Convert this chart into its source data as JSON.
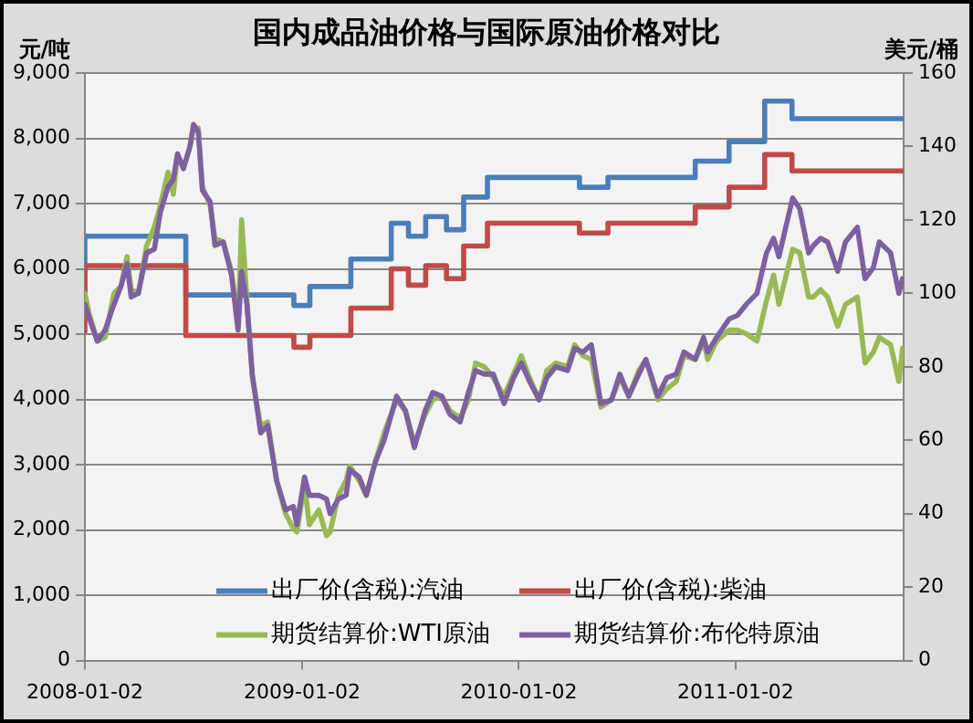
{
  "chart_data": {
    "type": "line",
    "title": "国内成品油价格与国际原油价格对比",
    "ylabel": "元/吨",
    "y2label": "美元/桶",
    "x": [
      "2008-01-02",
      "2008-01-10",
      "2008-01-23",
      "2008-02-05",
      "2008-02-20",
      "2008-03-03",
      "2008-03-13",
      "2008-03-20",
      "2008-04-01",
      "2008-04-15",
      "2008-04-28",
      "2008-05-08",
      "2008-05-21",
      "2008-05-30",
      "2008-06-06",
      "2008-06-16",
      "2008-06-27",
      "2008-07-03",
      "2008-07-11",
      "2008-07-18",
      "2008-07-31",
      "2008-08-08",
      "2008-08-22",
      "2008-09-05",
      "2008-09-16",
      "2008-09-22",
      "2008-10-01",
      "2008-10-10",
      "2008-10-24",
      "2008-11-05",
      "2008-11-20",
      "2008-12-05",
      "2008-12-18",
      "2008-12-24",
      "2009-01-06",
      "2009-01-14",
      "2009-01-30",
      "2009-02-12",
      "2009-02-18",
      "2009-03-04",
      "2009-03-17",
      "2009-03-23",
      "2009-04-08",
      "2009-04-20",
      "2009-05-05",
      "2009-05-20",
      "2009-06-10",
      "2009-06-25",
      "2009-07-10",
      "2009-07-28",
      "2009-08-10",
      "2009-08-25",
      "2009-09-08",
      "2009-09-25",
      "2009-10-09",
      "2009-10-21",
      "2009-11-05",
      "2009-11-20",
      "2009-12-08",
      "2009-12-24",
      "2010-01-06",
      "2010-01-20",
      "2010-02-05",
      "2010-02-18",
      "2010-03-05",
      "2010-03-25",
      "2010-04-06",
      "2010-04-20",
      "2010-05-04",
      "2010-05-20",
      "2010-06-07",
      "2010-06-21",
      "2010-07-06",
      "2010-07-23",
      "2010-08-04",
      "2010-08-24",
      "2010-09-08",
      "2010-09-24",
      "2010-10-07",
      "2010-10-26",
      "2010-11-09",
      "2010-11-16",
      "2010-12-01",
      "2010-12-22",
      "2011-01-05",
      "2011-01-20",
      "2011-02-07",
      "2011-02-23",
      "2011-03-07",
      "2011-03-16",
      "2011-04-08",
      "2011-04-20",
      "2011-05-05",
      "2011-05-13",
      "2011-05-25",
      "2011-06-06",
      "2011-06-23",
      "2011-07-06",
      "2011-07-26",
      "2011-08-08",
      "2011-08-22",
      "2011-09-01",
      "2011-09-20",
      "2011-10-04",
      "2011-10-10"
    ],
    "series": [
      {
        "name": "出厂价(含税):汽油",
        "type": "step",
        "color": "#4a7ebb",
        "x": [
          "2008-01-02",
          "2008-06-20",
          "2008-12-19",
          "2009-01-15",
          "2009-03-25",
          "2009-06-01",
          "2009-06-30",
          "2009-07-29",
          "2009-09-02",
          "2009-10-01",
          "2009-11-10",
          "2010-04-14",
          "2010-06-01",
          "2010-10-26",
          "2010-12-22",
          "2011-02-20",
          "2011-04-07",
          "2011-10-09",
          "2011-10-12"
        ],
        "values": [
          5500,
          6500,
          5600,
          5440,
          5730,
          6150,
          6700,
          6500,
          6800,
          6600,
          7100,
          7400,
          7250,
          7400,
          7650,
          7950,
          8570,
          8300,
          8300
        ]
      },
      {
        "name": "出厂价(含税):柴油",
        "type": "step",
        "color": "#be4b48",
        "x": [
          "2008-01-02",
          "2008-06-20",
          "2008-12-19",
          "2009-01-15",
          "2009-03-25",
          "2009-06-01",
          "2009-06-30",
          "2009-07-29",
          "2009-09-02",
          "2009-10-01",
          "2009-11-10",
          "2010-04-14",
          "2010-06-01",
          "2010-10-26",
          "2010-12-22",
          "2011-02-20",
          "2011-04-07",
          "2011-10-09",
          "2011-10-12"
        ],
        "values": [
          5040,
          6050,
          4980,
          4800,
          4980,
          5400,
          6000,
          5750,
          6050,
          5850,
          6350,
          6700,
          6550,
          6700,
          6950,
          7250,
          7750,
          7500,
          7500
        ]
      },
      {
        "name": "期货结算价:WTI原油",
        "axis": "y2",
        "color": "#98b954",
        "values": [
          100,
          94,
          87,
          88,
          100,
          102,
          110,
          101,
          100,
          113,
          118,
          124,
          133,
          127,
          138,
          134,
          140,
          145,
          145,
          129,
          124,
          115,
          114,
          106,
          91,
          120,
          98,
          77,
          64,
          65,
          49,
          40,
          36,
          35,
          48,
          37,
          41,
          34,
          35,
          45,
          49,
          53,
          49,
          45,
          54,
          62,
          71,
          68,
          59,
          67,
          71,
          72,
          68,
          66,
          71,
          81,
          80,
          77,
          72,
          78,
          83,
          77,
          71,
          79,
          81,
          80,
          86,
          83,
          82,
          69,
          71,
          77,
          72,
          79,
          82,
          71,
          74,
          76,
          83,
          82,
          87,
          82,
          87,
          90,
          90,
          89,
          87,
          98,
          105,
          97,
          112,
          111,
          99,
          99,
          101,
          99,
          91,
          97,
          99,
          81,
          84,
          88,
          86,
          76,
          85
        ]
      },
      {
        "name": "期货结算价:布伦特原油",
        "axis": "y2",
        "color": "#7d60a0",
        "values": [
          97,
          93,
          87,
          90,
          97,
          102,
          108,
          99,
          100,
          111,
          112,
          122,
          129,
          131,
          138,
          134,
          140,
          146,
          144,
          128,
          125,
          113,
          114,
          105,
          90,
          106,
          97,
          78,
          62,
          64,
          49,
          41,
          42,
          37,
          50,
          45,
          45,
          44,
          40,
          44,
          45,
          52,
          50,
          45,
          54,
          60,
          72,
          68,
          58,
          68,
          73,
          72,
          67,
          65,
          73,
          79,
          78,
          78,
          70,
          77,
          81,
          76,
          71,
          77,
          80,
          79,
          85,
          84,
          86,
          70,
          71,
          78,
          72,
          78,
          82,
          72,
          77,
          78,
          84,
          82,
          88,
          84,
          88,
          93,
          94,
          97,
          100,
          111,
          115,
          110,
          126,
          123,
          111,
          113,
          115,
          114,
          106,
          114,
          118,
          104,
          107,
          114,
          111,
          100,
          104
        ]
      }
    ],
    "xlim": [
      "2008-01-02",
      "2011-10-12"
    ],
    "xticks": [
      "2008-01-02",
      "2009-01-02",
      "2010-01-02",
      "2011-01-02"
    ],
    "ylim": [
      0,
      9000
    ],
    "yticks": [
      {
        "value": 0,
        "label": "0"
      },
      {
        "value": 1000,
        "label": "1,000"
      },
      {
        "value": 2000,
        "label": "2,000"
      },
      {
        "value": 3000,
        "label": "3,000"
      },
      {
        "value": 4000,
        "label": "4,000"
      },
      {
        "value": 5000,
        "label": "5,000"
      },
      {
        "value": 6000,
        "label": "6,000"
      },
      {
        "value": 7000,
        "label": "7,000"
      },
      {
        "value": 8000,
        "label": "8,000"
      },
      {
        "value": 9000,
        "label": "9,000"
      }
    ],
    "y2lim": [
      0,
      160
    ],
    "y2ticks": [
      0,
      20,
      40,
      60,
      80,
      100,
      120,
      140,
      160
    ],
    "grid": "y",
    "legend": "bottom"
  }
}
